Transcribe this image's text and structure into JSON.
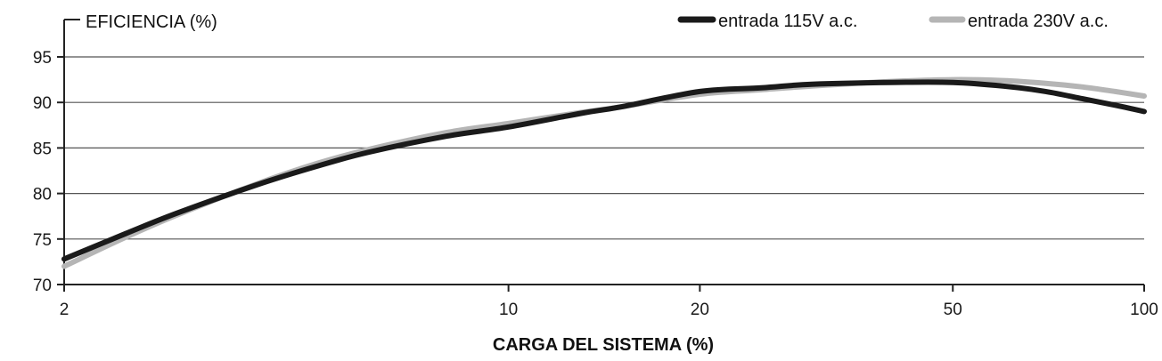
{
  "chart_data": {
    "type": "line",
    "ylabel": "EFICIENCIA (%)",
    "xlabel": "CARGA DEL SISTEMA (%)",
    "x_scale": "log",
    "xlim": [
      2,
      100
    ],
    "ylim": [
      70,
      95
    ],
    "x_ticks": [
      2,
      10,
      20,
      50,
      100
    ],
    "y_ticks": [
      70,
      75,
      80,
      85,
      90,
      95
    ],
    "grid": "horizontal",
    "legend": "top-right",
    "series": [
      {
        "name": "entrada 115V a.c.",
        "color": "#1a1a1a",
        "x": [
          2,
          2.5,
          3,
          4,
          5,
          6,
          8,
          10,
          13,
          15,
          20,
          25,
          30,
          40,
          50,
          60,
          70,
          80,
          90,
          100
        ],
        "y": [
          72.8,
          75.6,
          77.8,
          80.9,
          83.0,
          84.5,
          86.3,
          87.3,
          88.8,
          89.5,
          91.2,
          91.6,
          92.0,
          92.2,
          92.2,
          91.8,
          91.2,
          90.4,
          89.7,
          89.0
        ]
      },
      {
        "name": "entrada 230V a.c.",
        "color": "#b5b5b5",
        "x": [
          2,
          2.5,
          3,
          4,
          5,
          6,
          8,
          10,
          13,
          15,
          20,
          25,
          30,
          40,
          50,
          60,
          70,
          80,
          90,
          100
        ],
        "y": [
          72.0,
          75.2,
          77.6,
          81.0,
          83.3,
          84.8,
          86.7,
          87.7,
          88.9,
          89.5,
          90.9,
          91.4,
          91.8,
          92.3,
          92.5,
          92.4,
          92.1,
          91.7,
          91.2,
          90.7
        ]
      }
    ]
  }
}
